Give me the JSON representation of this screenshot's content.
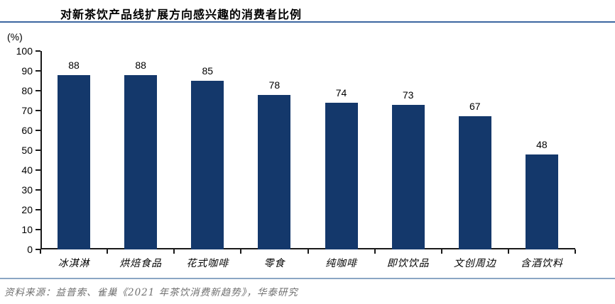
{
  "figure": {
    "title": "对新茶饮产品线扩展方向感兴趣的消费者比例",
    "unit_label": "(%)",
    "source": "资料来源：益普索、雀巢《2021 年茶饮消费新趋势》，华泰研究"
  },
  "colors": {
    "bar": "#14386b",
    "title_rule": "#3c66a0",
    "source_rule": "#8ba6c4",
    "axis": "#1a1a1a",
    "source_text": "#707070"
  },
  "chart_data": {
    "type": "bar",
    "title": "对新茶饮产品线扩展方向感兴趣的消费者比例",
    "categories": [
      "冰淇淋",
      "烘焙食品",
      "花式咖啡",
      "零食",
      "纯咖啡",
      "即饮饮品",
      "文创周边",
      "含酒饮料"
    ],
    "values": [
      88,
      88,
      85,
      78,
      74,
      73,
      67,
      48
    ],
    "xlabel": "",
    "ylabel": "(%)",
    "ylim": [
      0,
      100
    ],
    "ytick_step": 10,
    "yticks": [
      0,
      10,
      20,
      30,
      40,
      50,
      60,
      70,
      80,
      90,
      100
    ],
    "grid": false,
    "data_labels": true,
    "legend": null,
    "source": "资料来源：益普索、雀巢《2021 年茶饮消费新趋势》，华泰研究"
  }
}
